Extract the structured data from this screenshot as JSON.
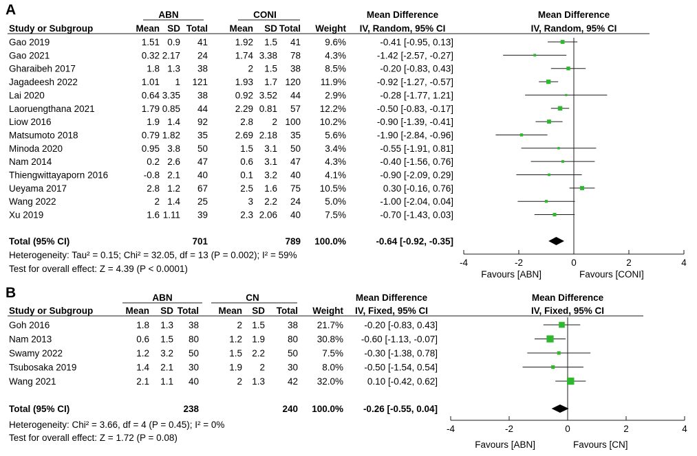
{
  "colors": {
    "point": "#2db82d",
    "diamond": "#000000",
    "line": "#1a1a1a"
  },
  "chart_data": [
    {
      "type": "forest",
      "panel_label": "A",
      "group1": "ABN",
      "group2": "CONI",
      "headers": {
        "study": "Study or Subgroup",
        "mean": "Mean",
        "sd": "SD",
        "total": "Total",
        "weight": "Weight",
        "effect_title": "Mean Difference",
        "effect_method": "IV, Random, 95% CI",
        "plot_title": "Mean Difference",
        "plot_method": "IV, Random, 95% CI"
      },
      "rows": [
        {
          "study": "Gao 2019",
          "m1": "1.51",
          "sd1": "0.9",
          "n1": "41",
          "m2": "1.92",
          "sd2": "1.5",
          "n2": "41",
          "weight": "9.6%",
          "ci_text": "-0.41 [-0.95, 0.13]",
          "md": -0.41,
          "lo": -0.95,
          "hi": 0.13,
          "w": 9.6
        },
        {
          "study": "Gao 2021",
          "m1": "0.32",
          "sd1": "2.17",
          "n1": "24",
          "m2": "1.74",
          "sd2": "3.38",
          "n2": "78",
          "weight": "4.3%",
          "ci_text": "-1.42 [-2.57, -0.27]",
          "md": -1.42,
          "lo": -2.57,
          "hi": -0.27,
          "w": 4.3
        },
        {
          "study": "Gharaibeh 2017",
          "m1": "1.8",
          "sd1": "1.3",
          "n1": "38",
          "m2": "2",
          "sd2": "1.5",
          "n2": "38",
          "weight": "8.5%",
          "ci_text": "-0.20 [-0.83, 0.43]",
          "md": -0.2,
          "lo": -0.83,
          "hi": 0.43,
          "w": 8.5
        },
        {
          "study": "Jagadeesh 2022",
          "m1": "1.01",
          "sd1": "1",
          "n1": "121",
          "m2": "1.93",
          "sd2": "1.7",
          "n2": "120",
          "weight": "11.9%",
          "ci_text": "-0.92 [-1.27, -0.57]",
          "md": -0.92,
          "lo": -1.27,
          "hi": -0.57,
          "w": 11.9
        },
        {
          "study": "Lai 2020",
          "m1": "0.64",
          "sd1": "3.35",
          "n1": "38",
          "m2": "0.92",
          "sd2": "3.52",
          "n2": "44",
          "weight": "2.9%",
          "ci_text": "-0.28 [-1.77, 1.21]",
          "md": -0.28,
          "lo": -1.77,
          "hi": 1.21,
          "w": 2.9
        },
        {
          "study": "Laoruengthana 2021",
          "m1": "1.79",
          "sd1": "0.85",
          "n1": "44",
          "m2": "2.29",
          "sd2": "0.81",
          "n2": "57",
          "weight": "12.2%",
          "ci_text": "-0.50 [-0.83, -0.17]",
          "md": -0.5,
          "lo": -0.83,
          "hi": -0.17,
          "w": 12.2
        },
        {
          "study": "Liow 2016",
          "m1": "1.9",
          "sd1": "1.4",
          "n1": "92",
          "m2": "2.8",
          "sd2": "2",
          "n2": "100",
          "weight": "10.2%",
          "ci_text": "-0.90 [-1.39, -0.41]",
          "md": -0.9,
          "lo": -1.39,
          "hi": -0.41,
          "w": 10.2
        },
        {
          "study": "Matsumoto 2018",
          "m1": "0.79",
          "sd1": "1.82",
          "n1": "35",
          "m2": "2.69",
          "sd2": "2.18",
          "n2": "35",
          "weight": "5.6%",
          "ci_text": "-1.90 [-2.84, -0.96]",
          "md": -1.9,
          "lo": -2.84,
          "hi": -0.96,
          "w": 5.6
        },
        {
          "study": "Minoda 2020",
          "m1": "0.95",
          "sd1": "3.8",
          "n1": "50",
          "m2": "1.5",
          "sd2": "3.1",
          "n2": "50",
          "weight": "3.4%",
          "ci_text": "-0.55 [-1.91, 0.81]",
          "md": -0.55,
          "lo": -1.91,
          "hi": 0.81,
          "w": 3.4
        },
        {
          "study": "Nam 2014",
          "m1": "0.2",
          "sd1": "2.6",
          "n1": "47",
          "m2": "0.6",
          "sd2": "3.1",
          "n2": "47",
          "weight": "4.3%",
          "ci_text": "-0.40 [-1.56, 0.76]",
          "md": -0.4,
          "lo": -1.56,
          "hi": 0.76,
          "w": 4.3
        },
        {
          "study": "Thiengwittayaporn 2016",
          "m1": "-0.8",
          "sd1": "2.1",
          "n1": "40",
          "m2": "0.1",
          "sd2": "3.2",
          "n2": "40",
          "weight": "4.1%",
          "ci_text": "-0.90 [-2.09, 0.29]",
          "md": -0.9,
          "lo": -2.09,
          "hi": 0.29,
          "w": 4.1
        },
        {
          "study": "Ueyama 2017",
          "m1": "2.8",
          "sd1": "1.2",
          "n1": "67",
          "m2": "2.5",
          "sd2": "1.6",
          "n2": "75",
          "weight": "10.5%",
          "ci_text": "0.30 [-0.16, 0.76]",
          "md": 0.3,
          "lo": -0.16,
          "hi": 0.76,
          "w": 10.5
        },
        {
          "study": "Wang 2022",
          "m1": "2",
          "sd1": "1.4",
          "n1": "25",
          "m2": "3",
          "sd2": "2.2",
          "n2": "24",
          "weight": "5.0%",
          "ci_text": "-1.00 [-2.04, 0.04]",
          "md": -1.0,
          "lo": -2.04,
          "hi": 0.04,
          "w": 5.0
        },
        {
          "study": "Xu 2019",
          "m1": "1.6",
          "sd1": "1.11",
          "n1": "39",
          "m2": "2.3",
          "sd2": "2.06",
          "n2": "40",
          "weight": "7.5%",
          "ci_text": "-0.70 [-1.43, 0.03]",
          "md": -0.7,
          "lo": -1.43,
          "hi": 0.03,
          "w": 7.5
        }
      ],
      "total": {
        "label": "Total (95% CI)",
        "n1": "701",
        "n2": "789",
        "weight": "100.0%",
        "ci_text": "-0.64 [-0.92, -0.35]",
        "md": -0.64,
        "lo": -0.92,
        "hi": -0.35
      },
      "heterogeneity": "Heterogeneity: Tau² = 0.15; Chi² = 32.05, df = 13 (P = 0.002); I² = 59%",
      "overall": "Test for overall effect: Z = 4.39 (P < 0.0001)",
      "axis": {
        "min": -4,
        "max": 4,
        "ticks": [
          -4,
          -2,
          0,
          2,
          4
        ],
        "tick_labels": [
          "-4",
          "-2",
          "0",
          "2",
          "4"
        ]
      },
      "favours_left": "Favours [ABN]",
      "favours_right": "Favours [CONI]"
    },
    {
      "type": "forest",
      "panel_label": "B",
      "group1": "ABN",
      "group2": "CN",
      "headers": {
        "study": "Study or Subgroup",
        "mean": "Mean",
        "sd": "SD",
        "total": "Total",
        "weight": "Weight",
        "effect_title": "Mean Difference",
        "effect_method": "IV, Fixed, 95% CI",
        "plot_title": "Mean Difference",
        "plot_method": "IV, Fixed, 95% CI"
      },
      "rows": [
        {
          "study": "Goh 2016",
          "m1": "1.8",
          "sd1": "1.3",
          "n1": "38",
          "m2": "2",
          "sd2": "1.5",
          "n2": "38",
          "weight": "21.7%",
          "ci_text": "-0.20 [-0.83, 0.43]",
          "md": -0.2,
          "lo": -0.83,
          "hi": 0.43,
          "w": 21.7
        },
        {
          "study": "Nam 2013",
          "m1": "0.6",
          "sd1": "1.5",
          "n1": "80",
          "m2": "1.2",
          "sd2": "1.9",
          "n2": "80",
          "weight": "30.8%",
          "ci_text": "-0.60 [-1.13, -0.07]",
          "md": -0.6,
          "lo": -1.13,
          "hi": -0.07,
          "w": 30.8
        },
        {
          "study": "Swamy 2022",
          "m1": "1.2",
          "sd1": "3.2",
          "n1": "50",
          "m2": "1.5",
          "sd2": "2.2",
          "n2": "50",
          "weight": "7.5%",
          "ci_text": "-0.30 [-1.38, 0.78]",
          "md": -0.3,
          "lo": -1.38,
          "hi": 0.78,
          "w": 7.5
        },
        {
          "study": "Tsubosaka 2019",
          "m1": "1.4",
          "sd1": "2.1",
          "n1": "30",
          "m2": "1.9",
          "sd2": "2",
          "n2": "30",
          "weight": "8.0%",
          "ci_text": "-0.50 [-1.54, 0.54]",
          "md": -0.5,
          "lo": -1.54,
          "hi": 0.54,
          "w": 8.0
        },
        {
          "study": "Wang 2021",
          "m1": "2.1",
          "sd1": "1.1",
          "n1": "40",
          "m2": "2",
          "sd2": "1.3",
          "n2": "42",
          "weight": "32.0%",
          "ci_text": "0.10 [-0.42, 0.62]",
          "md": 0.1,
          "lo": -0.42,
          "hi": 0.62,
          "w": 32.0
        }
      ],
      "total": {
        "label": "Total (95% CI)",
        "n1": "238",
        "n2": "240",
        "weight": "100.0%",
        "ci_text": "-0.26 [-0.55, 0.04]",
        "md": -0.26,
        "lo": -0.55,
        "hi": 0.04
      },
      "heterogeneity": "Heterogeneity: Chi² = 3.66, df = 4 (P = 0.45); I² = 0%",
      "overall": "Test for overall effect: Z = 1.72 (P = 0.08)",
      "axis": {
        "min": -4,
        "max": 4,
        "ticks": [
          -4,
          -2,
          0,
          2,
          4
        ],
        "tick_labels": [
          "-4",
          "-2",
          "0",
          "2",
          "4"
        ]
      },
      "favours_left": "Favours [ABN]",
      "favours_right": "Favours [CN]"
    }
  ]
}
